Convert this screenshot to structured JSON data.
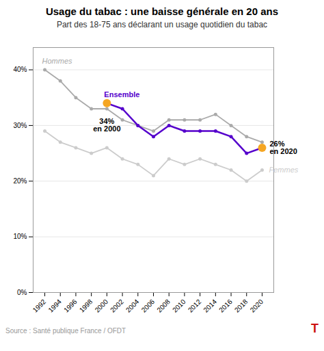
{
  "chart_data": {
    "type": "line",
    "title": "Usage du tabac : une baisse générale en 20 ans",
    "subtitle": "Part des 18-75 ans déclarant un usage quotidien du tabac",
    "source": "Source : Santé publique France / OFDT",
    "logo": {
      "text": "T",
      "color": "#cc1111"
    },
    "x": [
      1992,
      1994,
      1996,
      1998,
      2000,
      2002,
      2004,
      2006,
      2008,
      2010,
      2012,
      2014,
      2016,
      2018,
      2020
    ],
    "series": [
      {
        "name": "Hommes",
        "color": "#aaaaaa",
        "marker": "o",
        "values": [
          40,
          38,
          35,
          33,
          33,
          31,
          30,
          29,
          31,
          31,
          31,
          32,
          30,
          28,
          27
        ]
      },
      {
        "name": "Femmes",
        "color": "#cccccc",
        "marker": "o",
        "values": [
          29,
          27,
          26,
          25,
          26,
          24,
          23,
          21,
          24,
          23,
          24,
          23,
          22,
          20,
          22
        ]
      },
      {
        "name": "Ensemble",
        "color": "#5500cc",
        "marker": "o",
        "values": [
          null,
          null,
          null,
          null,
          34,
          33,
          30,
          28,
          30,
          29,
          29,
          29,
          28,
          25,
          26
        ]
      }
    ],
    "annotations": [
      {
        "x": 2000,
        "y": 34,
        "label": "34%\nen 2000",
        "color": "#f5a623"
      },
      {
        "x": 2020,
        "y": 26,
        "label": "26%\nen 2020",
        "color": "#f5a623"
      }
    ],
    "xlim": [
      1990.5,
      2021.5
    ],
    "xticks": [
      1992,
      1994,
      1996,
      1998,
      2000,
      2002,
      2004,
      2006,
      2008,
      2010,
      2012,
      2014,
      2016,
      2018,
      2020
    ],
    "ylim": [
      0,
      44
    ],
    "yticks": [
      {
        "value": 0,
        "label": "0%"
      },
      {
        "value": 10,
        "label": "10%"
      },
      {
        "value": 20,
        "label": "20%"
      },
      {
        "value": 30,
        "label": "30%"
      },
      {
        "value": 40,
        "label": "40%"
      }
    ],
    "grid": true
  }
}
